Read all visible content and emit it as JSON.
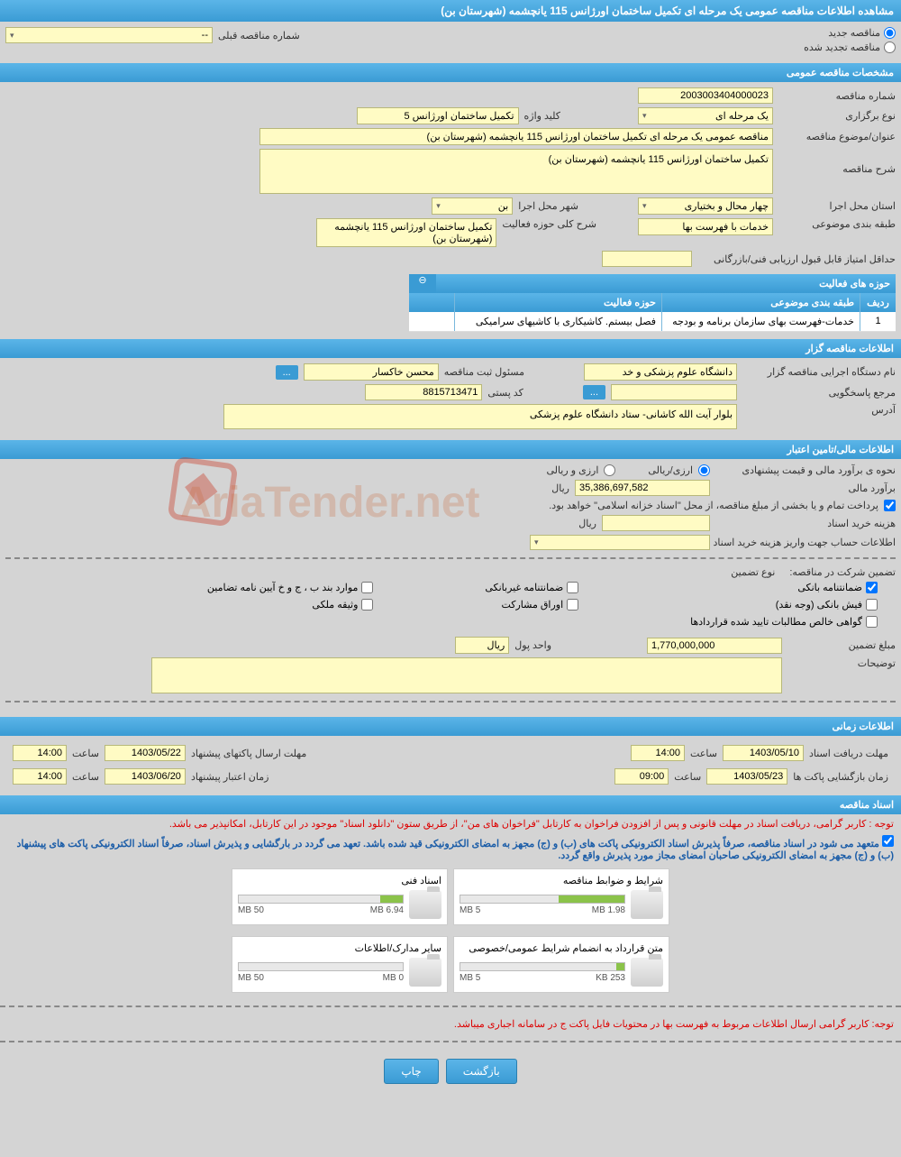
{
  "page_title": "مشاهده اطلاعات مناقصه عمومی یک مرحله ای تکمیل ساختمان اورژانس 115 یانچشمه (شهرستان بن)",
  "tender_type": {
    "new_label": "مناقصه جدید",
    "renewed_label": "مناقصه تجدید شده",
    "selected": "new"
  },
  "prev_tender_label": "شماره مناقصه قبلی",
  "prev_tender_value": "--",
  "sections": {
    "general": "مشخصات مناقصه عمومی",
    "holder": "اطلاعات مناقصه گزار",
    "financial": "اطلاعات مالی/تامین اعتبار",
    "timing": "اطلاعات زمانی",
    "documents": "اسناد مناقصه"
  },
  "general": {
    "tender_no_label": "شماره مناقصه",
    "tender_no": "2003003404000023",
    "holding_type_label": "نوع برگزاری",
    "holding_type": "یک مرحله ای",
    "keyword_label": "کلید واژه",
    "keyword": "تکمیل ساختمان اورژانس 5",
    "subject_label": "عنوان/موضوع مناقصه",
    "subject": "مناقصه عمومی یک مرحله ای تکمیل ساختمان اورژانس 115 یانچشمه (شهرستان بن)",
    "desc_label": "شرح مناقصه",
    "desc": "تکمیل ساختمان اورژانس 115 یانچشمه (شهرستان بن)",
    "province_label": "استان محل اجرا",
    "province": "چهار محال و بختیاری",
    "city_label": "شهر محل اجرا",
    "city": "بن",
    "category_label": "طبقه بندی موضوعی",
    "category": "خدمات با فهرست بها",
    "activity_desc_label": "شرح کلی حوزه فعالیت",
    "activity_desc": "تکمیل ساختمان اورژانس 115 یانچشمه (شهرستان بن)",
    "min_score_label": "حداقل امتیاز قابل قبول ارزیابی فنی/بازرگانی",
    "min_score": ""
  },
  "activity_table": {
    "title": "حوزه های فعالیت",
    "col_idx": "ردیف",
    "col_category": "طبقه بندی موضوعی",
    "col_activity": "حوزه فعالیت",
    "rows": [
      {
        "idx": "1",
        "category": "خدمات-فهرست بهای سازمان برنامه و بودجه",
        "activity": "فصل بیستم. کاشیکاری با کاشیهای سرامیکی"
      }
    ]
  },
  "holder": {
    "exec_label": "نام دستگاه اجرایی مناقصه گزار",
    "exec": "دانشگاه علوم پزشکی و خد",
    "responsible_label": "مسئول ثبت مناقصه",
    "responsible": "محسن خاکسار",
    "reference_label": "مرجع پاسخگویی",
    "reference": "",
    "postal_label": "کد پستی",
    "postal": "8815713471",
    "address_label": "آدرس",
    "address": "بلوار آیت الله کاشانی- ستاد دانشگاه علوم پزشکی"
  },
  "financial": {
    "estimate_method_label": "نحوه ی برآورد مالی و قیمت پیشنهادی",
    "rial_option": "ارزی/ریالی",
    "currency_option": "ارزی و ریالی",
    "estimate_label": "برآورد مالی",
    "estimate_value": "35,386,697,582",
    "rial_unit": "ریال",
    "treasury_note": "پرداخت تمام و یا بخشی از مبلغ مناقصه، از محل \"اسناد خزانه اسلامی\" خواهد بود.",
    "doc_cost_label": "هزینه خرید اسناد",
    "doc_cost": "",
    "account_label": "اطلاعات حساب جهت واریز هزینه خرید اسناد",
    "participation_label": "تضمین شرکت در مناقصه:",
    "guarantee_type_label": "نوع تضمین",
    "guarantees": {
      "bank": "ضمانتنامه بانکی",
      "nonbank": "ضمانتنامه غیربانکی",
      "bylaws": "موارد بند ب ، ج و خ آیین نامه تضامین",
      "cash": "فیش بانکی (وجه نقد)",
      "bonds": "اوراق مشارکت",
      "property": "وثیقه ملکی",
      "claims": "گواهی خالص مطالبات تایید شده قراردادها"
    },
    "guarantee_amount_label": "مبلغ تضمین",
    "guarantee_amount": "1,770,000,000",
    "money_unit_label": "واحد پول",
    "money_unit": "ریال",
    "notes_label": "توضیحات",
    "notes": ""
  },
  "timing": {
    "receive_deadline_label": "مهلت دریافت اسناد",
    "receive_deadline_date": "1403/05/10",
    "receive_deadline_time": "14:00",
    "packet_send_label": "مهلت ارسال پاکتهای پیشنهاد",
    "packet_send_date": "1403/05/22",
    "packet_send_time": "14:00",
    "open_label": "زمان بازگشایی پاکت ها",
    "open_date": "1403/05/23",
    "open_time": "09:00",
    "validity_label": "زمان اعتبار پیشنهاد",
    "validity_date": "1403/06/20",
    "validity_time": "14:00",
    "time_label": "ساعت"
  },
  "documents": {
    "note1": "توجه : کاربر گرامی، دریافت اسناد در مهلت قانونی و پس از افزودن فراخوان به کارتابل \"فراخوان های من\"، از طریق ستون \"دانلود اسناد\" موجود در این کارتابل، امکانپذیر می باشد.",
    "note2": "متعهد می شود در اسناد مناقصه، صرفاً پذیرش اسناد الکترونیکی پاکت های (ب) و (ج) مجهز به امضای الکترونیکی قید شده باشد. تعهد می گردد در بارگشایی و پذیرش اسناد، صرفاً اسناد الکترونیکی پاکت های پیشنهاد (ب) و (ج) مجهز به امضای الکترونیکی صاحبان امضای مجاز مورد پذیرش واقع گردد.",
    "cards": [
      {
        "title": "شرایط و ضوابط مناقصه",
        "used": "1.98 MB",
        "max": "5 MB",
        "pct": 40
      },
      {
        "title": "اسناد فنی",
        "used": "6.94 MB",
        "max": "50 MB",
        "pct": 14
      },
      {
        "title": "متن قرارداد به انضمام شرایط عمومی/خصوصی",
        "used": "253 KB",
        "max": "5 MB",
        "pct": 5
      },
      {
        "title": "سایر مدارک/اطلاعات",
        "used": "0 MB",
        "max": "50 MB",
        "pct": 0
      }
    ],
    "footer_note": "توجه: کاربر گرامی ارسال اطلاعات مربوط به فهرست بها در محتویات فایل پاکت ج در سامانه اجباری میباشد."
  },
  "buttons": {
    "back": "بازگشت",
    "print": "چاپ"
  },
  "colors": {
    "header_bg": "#3a9bd4",
    "field_bg": "#fffbc4",
    "page_bg": "#d4d4d4"
  }
}
